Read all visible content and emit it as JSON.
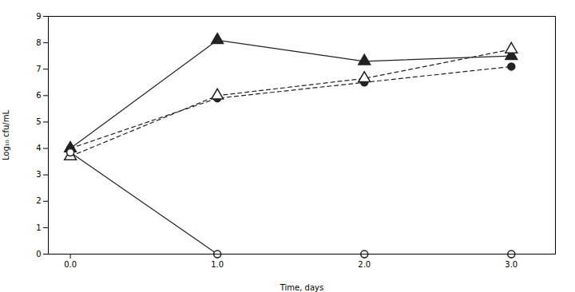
{
  "chart_data": {
    "type": "line",
    "xlabel": "Time, days",
    "ylabel": "Log₁₀ cfu/mL",
    "x": [
      0,
      1,
      2,
      3
    ],
    "xlim": [
      -0.15,
      3.3
    ],
    "xticks": [
      0,
      1,
      2,
      3
    ],
    "ylim": [
      0,
      9
    ],
    "yticks": [
      0,
      1,
      2,
      3,
      4,
      5,
      6,
      7,
      8,
      9
    ],
    "grid": false,
    "series": [
      {
        "color": "#222222",
        "marker": "circle",
        "line_style": "dashed",
        "values": [
          4.0,
          5.9,
          6.5,
          7.1
        ]
      },
      {
        "color": "#222222",
        "marker": "triangle",
        "line_style": "solid",
        "values": [
          4.0,
          8.1,
          7.3,
          7.5
        ]
      },
      {
        "color": "#222222",
        "marker": "open_triangle",
        "line_style": "dashed",
        "values": [
          3.7,
          6.0,
          6.65,
          7.75
        ]
      },
      {
        "color": "#222222",
        "marker": "open_circle",
        "line_style": "solid",
        "values": [
          3.85,
          0.0,
          0.0,
          0.0
        ]
      }
    ]
  }
}
